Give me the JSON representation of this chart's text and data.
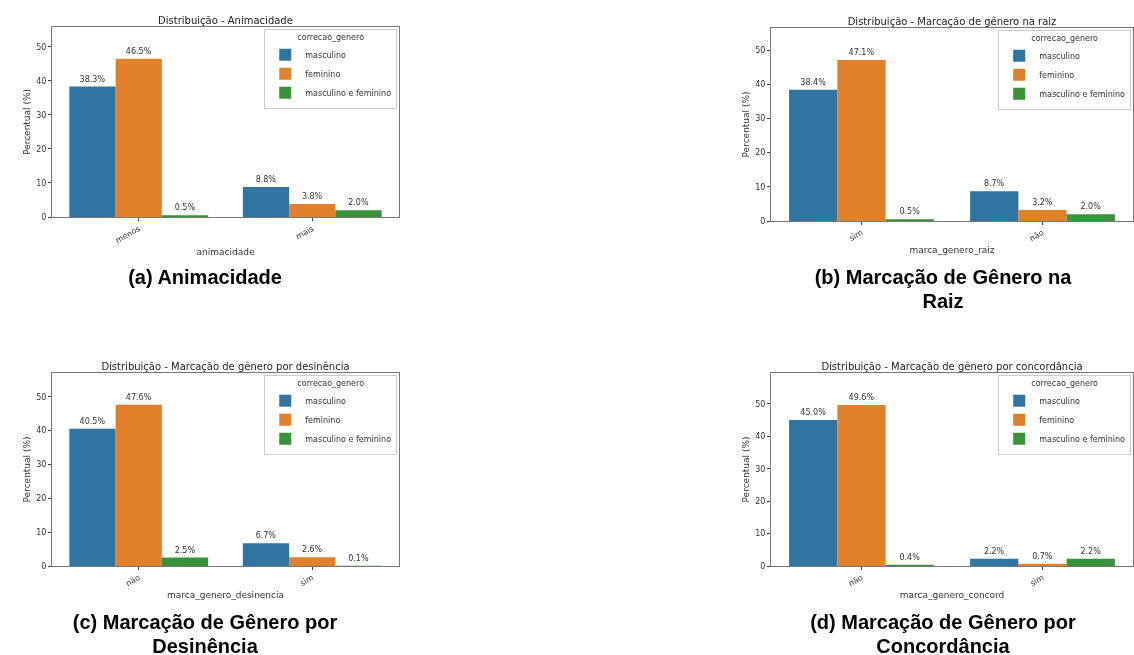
{
  "chart_data": [
    {
      "type": "bar",
      "title": "Distribuição - Animacidade",
      "xlabel": "animacidade",
      "ylabel": "Percentual (%)",
      "legend_title": "correcao_genero",
      "legend": "top right",
      "categories": [
        "menos",
        "mais"
      ],
      "ylim": [
        0,
        55.8
      ],
      "yticks": [
        0,
        10,
        20,
        30,
        40,
        50
      ],
      "annotations": [
        "(a) Animacidade"
      ],
      "series": [
        {
          "name": "masculino",
          "color": "#3274a1",
          "values": [
            38.3,
            8.8
          ],
          "value_labels": [
            "38.3%",
            "8.8%"
          ]
        },
        {
          "name": "feminino",
          "color": "#e1812c",
          "values": [
            46.5,
            3.8
          ],
          "value_labels": [
            "46.5%",
            "3.8%"
          ]
        },
        {
          "name": "masculino e feminino",
          "color": "#3a923a",
          "values": [
            0.5,
            2.0
          ],
          "value_labels": [
            "0.5%",
            "2.0%"
          ]
        }
      ]
    },
    {
      "type": "bar",
      "title": "Distribuição - Marcação de gênero na raiz",
      "xlabel": "marca_genero_raiz",
      "ylabel": "Percentual (%)",
      "legend_title": "correcao_genero",
      "legend": "top right",
      "categories": [
        "sim",
        "não"
      ],
      "ylim": [
        0,
        56.5
      ],
      "yticks": [
        0,
        10,
        20,
        30,
        40,
        50
      ],
      "annotations": [
        "(b) Marcação de Gênero na Raiz"
      ],
      "series": [
        {
          "name": "masculino",
          "color": "#3274a1",
          "values": [
            38.4,
            8.7
          ],
          "value_labels": [
            "38.4%",
            "8.7%"
          ]
        },
        {
          "name": "feminino",
          "color": "#e1812c",
          "values": [
            47.1,
            3.2
          ],
          "value_labels": [
            "47.1%",
            "3.2%"
          ]
        },
        {
          "name": "masculino e feminino",
          "color": "#3a923a",
          "values": [
            0.5,
            2.0
          ],
          "value_labels": [
            "0.5%",
            "2.0%"
          ]
        }
      ]
    },
    {
      "type": "bar",
      "title": "Distribuição - Marcação de gênero por desinência",
      "xlabel": "marca_genero_desinencia",
      "ylabel": "Percentual (%)",
      "legend_title": "correcao_genero",
      "legend": "top right",
      "categories": [
        "não",
        "sim"
      ],
      "ylim": [
        0,
        57.0
      ],
      "yticks": [
        0,
        10,
        20,
        30,
        40,
        50
      ],
      "annotations": [
        "(c) Marcação de Gênero por Desinência"
      ],
      "series": [
        {
          "name": "masculino",
          "color": "#3274a1",
          "values": [
            40.5,
            6.7
          ],
          "value_labels": [
            "40.5%",
            "6.7%"
          ]
        },
        {
          "name": "feminino",
          "color": "#e1812c",
          "values": [
            47.6,
            2.6
          ],
          "value_labels": [
            "47.6%",
            "2.6%"
          ]
        },
        {
          "name": "masculino e feminino",
          "color": "#3a923a",
          "values": [
            2.5,
            0.1
          ],
          "value_labels": [
            "2.5%",
            "0.1%"
          ]
        }
      ]
    },
    {
      "type": "bar",
      "title": "Distribuição - Marcação de gênero por concordância",
      "xlabel": "marca_genero_concord",
      "ylabel": "Percentual (%)",
      "legend_title": "correcao_genero",
      "legend": "top right",
      "categories": [
        "não",
        "sim"
      ],
      "ylim": [
        0,
        59.5
      ],
      "yticks": [
        0,
        10,
        20,
        30,
        40,
        50
      ],
      "annotations": [
        "(d) Marcação de Gênero por Concordância"
      ],
      "series": [
        {
          "name": "masculino",
          "color": "#3274a1",
          "values": [
            45.0,
            2.2
          ],
          "value_labels": [
            "45.0%",
            "2.2%"
          ]
        },
        {
          "name": "feminino",
          "color": "#e1812c",
          "values": [
            49.6,
            0.7
          ],
          "value_labels": [
            "49.6%",
            "0.7%"
          ]
        },
        {
          "name": "masculino e feminino",
          "color": "#3a923a",
          "values": [
            0.4,
            2.2
          ],
          "value_labels": [
            "0.4%",
            "2.2%"
          ]
        }
      ]
    }
  ]
}
